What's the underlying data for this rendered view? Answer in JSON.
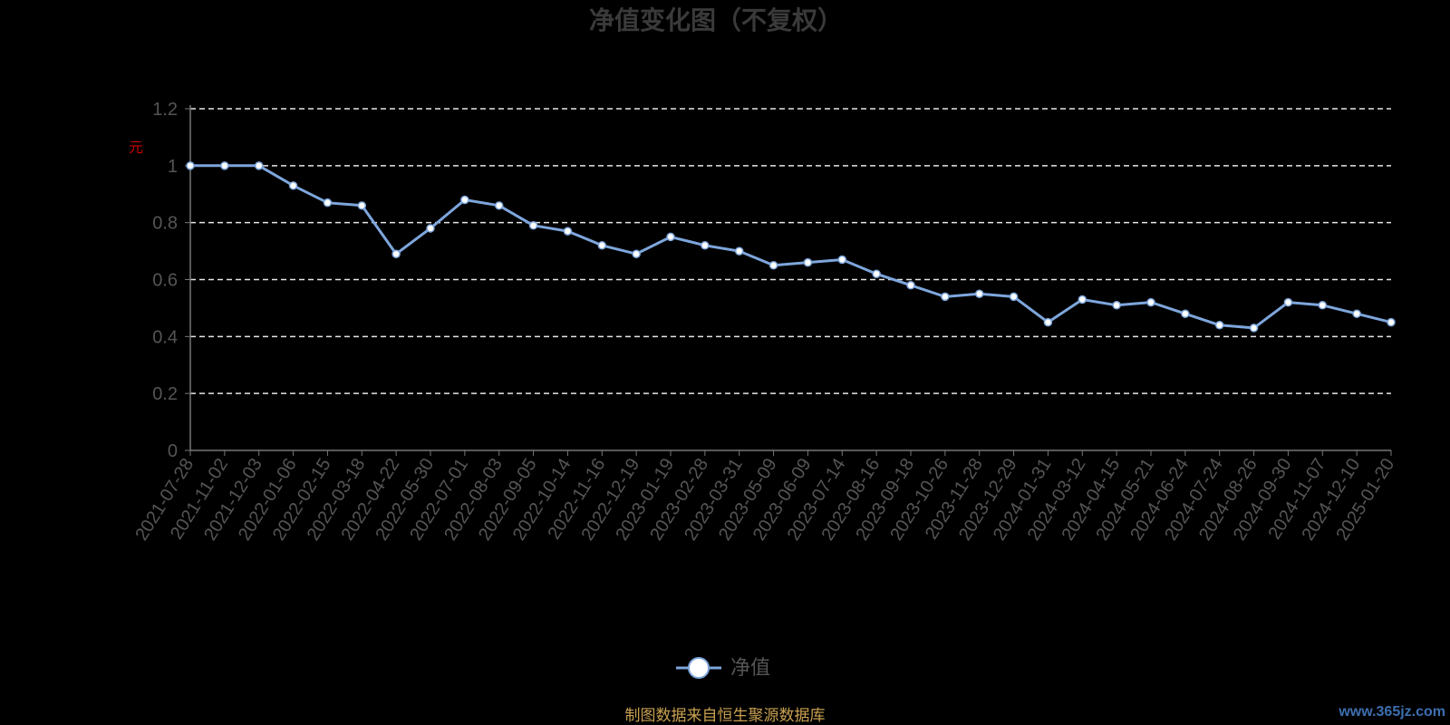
{
  "chart_data": {
    "type": "line",
    "title": "净值变化图（不复权）",
    "ylabel": "元",
    "ylim": [
      0,
      1.2
    ],
    "yticks": [
      0,
      0.2,
      0.4,
      0.6,
      0.8,
      1,
      1.2
    ],
    "grid": true,
    "legend_position": "bottom-center",
    "x": [
      "2021-07-28",
      "2021-11-02",
      "2021-12-03",
      "2022-01-06",
      "2022-02-15",
      "2022-03-18",
      "2022-04-22",
      "2022-05-30",
      "2022-07-01",
      "2022-08-03",
      "2022-09-05",
      "2022-10-14",
      "2022-11-16",
      "2022-12-19",
      "2023-01-19",
      "2023-02-28",
      "2023-03-31",
      "2023-05-09",
      "2023-06-09",
      "2023-07-14",
      "2023-08-16",
      "2023-09-18",
      "2023-10-26",
      "2023-11-28",
      "2023-12-29",
      "2024-01-31",
      "2024-03-12",
      "2024-04-15",
      "2024-05-21",
      "2024-06-24",
      "2024-07-24",
      "2024-08-26",
      "2024-09-30",
      "2024-11-07",
      "2024-12-10",
      "2025-01-20"
    ],
    "series": [
      {
        "name": "净值",
        "color": "#7ea6dc",
        "values": [
          1.0,
          1.0,
          1.0,
          0.93,
          0.87,
          0.86,
          0.69,
          0.78,
          0.88,
          0.86,
          0.79,
          0.77,
          0.72,
          0.69,
          0.75,
          0.72,
          0.7,
          0.65,
          0.66,
          0.67,
          0.62,
          0.58,
          0.54,
          0.55,
          0.54,
          0.45,
          0.53,
          0.51,
          0.52,
          0.48,
          0.44,
          0.43,
          0.52,
          0.51,
          0.48,
          0.45
        ]
      }
    ]
  },
  "legend": {
    "label": "净值"
  },
  "source": "制图数据来自恒生聚源数据库",
  "watermark": "www.365jz.com"
}
